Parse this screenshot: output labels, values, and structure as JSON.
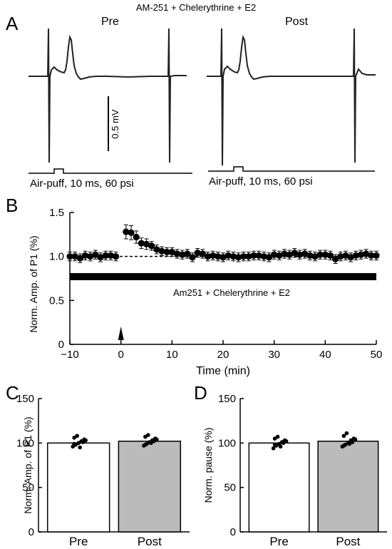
{
  "panels": {
    "a": "A",
    "b": "B",
    "c": "C",
    "d": "D"
  },
  "panel_a": {
    "title": "AM-251 + Chelerythrine + E2",
    "pre_label": "Pre",
    "post_label": "Post",
    "scale_label": "0.5 mV",
    "stim_label": "Air-puff, 10 ms, 60 psi",
    "trace_color": "#222222"
  },
  "chart_data": [
    {
      "type": "scatter",
      "panel": "B",
      "xlabel": "Time (min)",
      "ylabel": "Norm. Amp. of P1 (%)",
      "xlim": [
        -10,
        50
      ],
      "ylim": [
        0,
        1.5
      ],
      "xticks": [
        -10,
        0,
        10,
        20,
        30,
        40,
        50
      ],
      "yticks": [
        0,
        0.5,
        1.0,
        1.5
      ],
      "xtick_labels": [
        "−10",
        "0",
        "10",
        "20",
        "30",
        "40",
        "50"
      ],
      "ytick_labels": [
        "0",
        "0.5",
        "1.0",
        "1.5"
      ],
      "baseline": 1.0,
      "drug_bar": {
        "label": "Am251 + Chelerythrine + E2",
        "level": 0.77,
        "x_start": -10,
        "x_end": 50
      },
      "stim_marker_x": 0,
      "series": [
        {
          "x": [
            -10,
            -9,
            -8,
            -7,
            -6,
            -5,
            -4,
            -3,
            -2,
            -1,
            0,
            1,
            2,
            3,
            4,
            5,
            6,
            7,
            8,
            9,
            10,
            11,
            12,
            13,
            14,
            15,
            16,
            17,
            18,
            19,
            20,
            21,
            22,
            23,
            24,
            25,
            26,
            27,
            28,
            29,
            30,
            31,
            32,
            33,
            34,
            35,
            36,
            37,
            38,
            39,
            40,
            41,
            42,
            43,
            44,
            45,
            46,
            47,
            48,
            49,
            50
          ],
          "y": [
            1.0,
            1.0,
            0.98,
            1.01,
            1.0,
            1.02,
            0.99,
            1.01,
            1.01,
            1.0,
            null,
            1.28,
            1.27,
            1.22,
            1.15,
            1.14,
            1.12,
            1.08,
            1.06,
            1.05,
            1.05,
            1.03,
            1.02,
            1.03,
            0.99,
            1.04,
            1.03,
            1.0,
            1.01,
            1.0,
            0.99,
            1.01,
            1.0,
            0.99,
            1.0,
            1.0,
            1.01,
            1.01,
            1.0,
            0.99,
            1.02,
            1.01,
            1.03,
            1.02,
            1.04,
            1.02,
            1.03,
            1.01,
            1.0,
            1.02,
            1.02,
            1.01,
            0.97,
            1.0,
            1.01,
            0.99,
            1.01,
            1.02,
            1.03,
            1.01,
            1.01
          ],
          "err": [
            0.05,
            0.05,
            0.05,
            0.05,
            0.05,
            0.05,
            0.05,
            0.05,
            0.05,
            0.05,
            null,
            0.08,
            0.08,
            0.07,
            0.06,
            0.06,
            0.05,
            0.05,
            0.05,
            0.05,
            0.05,
            0.05,
            0.05,
            0.05,
            0.05,
            0.05,
            0.05,
            0.05,
            0.05,
            0.05,
            0.05,
            0.05,
            0.05,
            0.05,
            0.05,
            0.05,
            0.05,
            0.05,
            0.05,
            0.05,
            0.05,
            0.05,
            0.05,
            0.05,
            0.05,
            0.05,
            0.05,
            0.05,
            0.05,
            0.05,
            0.05,
            0.05,
            0.05,
            0.05,
            0.05,
            0.05,
            0.05,
            0.05,
            0.05,
            0.05,
            0.05
          ]
        }
      ]
    },
    {
      "type": "bar",
      "panel": "C",
      "ylabel": "Norm. Amp. of P1 (%)",
      "ylim": [
        0,
        150
      ],
      "yticks": [
        0,
        50,
        100,
        150
      ],
      "categories": [
        "Pre",
        "Post"
      ],
      "values": [
        100,
        102
      ],
      "colors": [
        "#ffffff",
        "#bbbbbb"
      ],
      "points": [
        [
          96,
          98,
          100,
          102,
          104,
          106,
          108,
          95,
          101,
          103,
          99
        ],
        [
          97,
          99,
          101,
          103,
          105,
          107,
          109,
          100,
          102,
          104,
          98
        ]
      ]
    },
    {
      "type": "bar",
      "panel": "D",
      "ylabel": "Norm. pause (%)",
      "ylim": [
        0,
        150
      ],
      "yticks": [
        0,
        50,
        100,
        150
      ],
      "categories": [
        "Pre",
        "Post"
      ],
      "values": [
        100,
        102
      ],
      "colors": [
        "#ffffff",
        "#bbbbbb"
      ],
      "points": [
        [
          94,
          97,
          99,
          101,
          103,
          105,
          107,
          96,
          100,
          102,
          98
        ],
        [
          96,
          98,
          100,
          103,
          105,
          108,
          111,
          99,
          101,
          104,
          97
        ]
      ]
    }
  ]
}
